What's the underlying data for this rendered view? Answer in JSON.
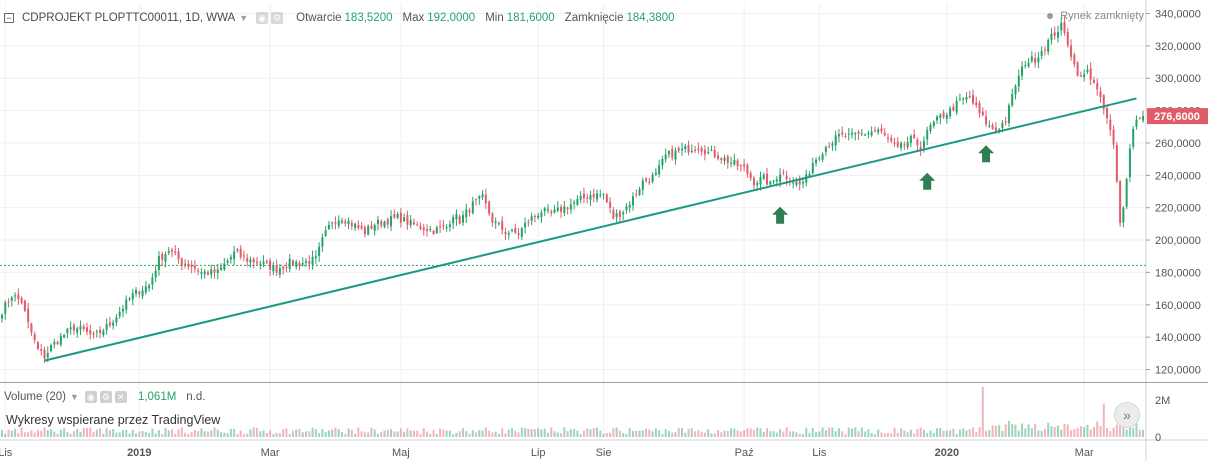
{
  "header": {
    "symbol": "CDPROJEKT PLOPTTC00011, 1D, WWA",
    "open_label": "Otwarcie",
    "open_value": "183,5200",
    "max_label": "Max",
    "max_value": "192,0000",
    "min_label": "Min",
    "min_value": "181,6000",
    "close_label": "Zamknięcie",
    "close_value": "184,3800",
    "market_status": "Rynek zamknięty"
  },
  "volume_panel": {
    "label": "Volume (20)",
    "value": "1,061M",
    "second_value": "n.d.",
    "credit": "Wykresy wspierane przez TradingView"
  },
  "colors": {
    "up": "#26a269",
    "down": "#e05c6a",
    "trendline": "#1a9984",
    "arrow": "#2e7d53",
    "last_price_bg": "#e05c6a",
    "grid": "#eef0f2"
  },
  "icons": [
    "collapse-icon",
    "settings-icon",
    "close-icon",
    "scroll-to-end-icon",
    "arrow-up-icon"
  ],
  "chart_data": {
    "type": "candlestick",
    "title": "CDPROJEKT PLOPTTC00011, 1D, WWA",
    "currency_format": "0,0000",
    "y_axis": {
      "ticks": [
        "340,0000",
        "320,0000",
        "300,0000",
        "280,0000",
        "260,0000",
        "240,0000",
        "220,0000",
        "200,0000",
        "180,0000",
        "160,0000",
        "140,0000",
        "120,0000"
      ],
      "tick_values": [
        340,
        320,
        300,
        280,
        260,
        240,
        220,
        200,
        180,
        160,
        140,
        120
      ],
      "range": [
        113,
        347
      ]
    },
    "x_axis": {
      "labels": [
        "Lis",
        "2019",
        "Mar",
        "Maj",
        "Lip",
        "Sie",
        "Paź",
        "Lis",
        "2020",
        "Mar"
      ],
      "label_day_index": [
        1,
        42,
        82,
        122,
        164,
        184,
        227,
        250,
        289,
        331
      ]
    },
    "last_price": {
      "label": "276,6000",
      "value": 276.6
    },
    "dotted_level": 184.38,
    "trendline": {
      "start": {
        "day": 13,
        "price": 125.5
      },
      "end": {
        "day": 347,
        "price": 287.5
      }
    },
    "arrows": [
      {
        "day": 238,
        "price": 215
      },
      {
        "day": 283,
        "price": 236
      },
      {
        "day": 301,
        "price": 253
      }
    ],
    "price_anchors": [
      [
        0,
        156
      ],
      [
        3,
        166
      ],
      [
        6,
        162
      ],
      [
        8,
        148
      ],
      [
        11,
        132
      ],
      [
        13,
        128
      ],
      [
        15,
        134
      ],
      [
        18,
        140
      ],
      [
        22,
        146
      ],
      [
        25,
        144
      ],
      [
        28,
        140
      ],
      [
        33,
        148
      ],
      [
        36,
        156
      ],
      [
        40,
        166
      ],
      [
        43,
        170
      ],
      [
        45,
        172
      ],
      [
        48,
        188
      ],
      [
        51,
        194
      ],
      [
        55,
        186
      ],
      [
        58,
        184
      ],
      [
        61,
        180
      ],
      [
        66,
        180
      ],
      [
        71,
        192
      ],
      [
        75,
        188
      ],
      [
        79,
        186
      ],
      [
        84,
        182
      ],
      [
        88,
        186
      ],
      [
        92,
        186
      ],
      [
        96,
        188
      ],
      [
        98,
        200
      ],
      [
        101,
        212
      ],
      [
        104,
        214
      ],
      [
        107,
        210
      ],
      [
        111,
        205
      ],
      [
        114,
        210
      ],
      [
        118,
        212
      ],
      [
        121,
        214
      ],
      [
        125,
        210
      ],
      [
        128,
        208
      ],
      [
        132,
        206
      ],
      [
        136,
        208
      ],
      [
        138,
        216
      ],
      [
        140,
        212
      ],
      [
        144,
        222
      ],
      [
        147,
        226
      ],
      [
        150,
        212
      ],
      [
        154,
        205
      ],
      [
        158,
        204
      ],
      [
        161,
        212
      ],
      [
        165,
        218
      ],
      [
        168,
        216
      ],
      [
        172,
        220
      ],
      [
        176,
        224
      ],
      [
        180,
        228
      ],
      [
        184,
        228
      ],
      [
        187,
        214
      ],
      [
        190,
        218
      ],
      [
        193,
        226
      ],
      [
        196,
        236
      ],
      [
        200,
        240
      ],
      [
        203,
        252
      ],
      [
        206,
        254
      ],
      [
        209,
        256
      ],
      [
        213,
        258
      ],
      [
        216,
        254
      ],
      [
        219,
        252
      ],
      [
        223,
        248
      ],
      [
        227,
        244
      ],
      [
        230,
        236
      ],
      [
        233,
        238
      ],
      [
        235,
        234
      ],
      [
        238,
        242
      ],
      [
        241,
        238
      ],
      [
        244,
        234
      ],
      [
        246,
        238
      ],
      [
        248,
        248
      ],
      [
        252,
        258
      ],
      [
        256,
        264
      ],
      [
        260,
        264
      ],
      [
        264,
        266
      ],
      [
        268,
        268
      ],
      [
        271,
        262
      ],
      [
        274,
        256
      ],
      [
        278,
        262
      ],
      [
        281,
        258
      ],
      [
        284,
        270
      ],
      [
        287,
        276
      ],
      [
        290,
        280
      ],
      [
        293,
        286
      ],
      [
        296,
        288
      ],
      [
        299,
        278
      ],
      [
        302,
        270
      ],
      [
        304,
        268
      ],
      [
        307,
        274
      ],
      [
        310,
        296
      ],
      [
        313,
        310
      ],
      [
        316,
        312
      ],
      [
        319,
        320
      ],
      [
        322,
        328
      ],
      [
        324,
        332
      ],
      [
        326,
        322
      ],
      [
        328,
        308
      ],
      [
        330,
        300
      ],
      [
        332,
        304
      ],
      [
        334,
        298
      ],
      [
        336,
        286
      ],
      [
        338,
        275
      ],
      [
        340,
        258
      ],
      [
        341,
        235
      ],
      [
        342,
        210
      ],
      [
        343,
        222
      ],
      [
        344,
        240
      ],
      [
        345,
        256
      ],
      [
        346,
        270
      ],
      [
        347,
        274
      ],
      [
        348,
        276.6
      ]
    ],
    "volume": {
      "axis_labels": [
        "2M",
        "0"
      ],
      "axis_values": [
        2000000,
        0
      ],
      "last_value": 1061000,
      "spikes": [
        {
          "day": 300,
          "value": 2700000
        },
        {
          "day": 337,
          "value": 1800000
        },
        {
          "day": 342,
          "value": 1500000
        }
      ]
    }
  }
}
